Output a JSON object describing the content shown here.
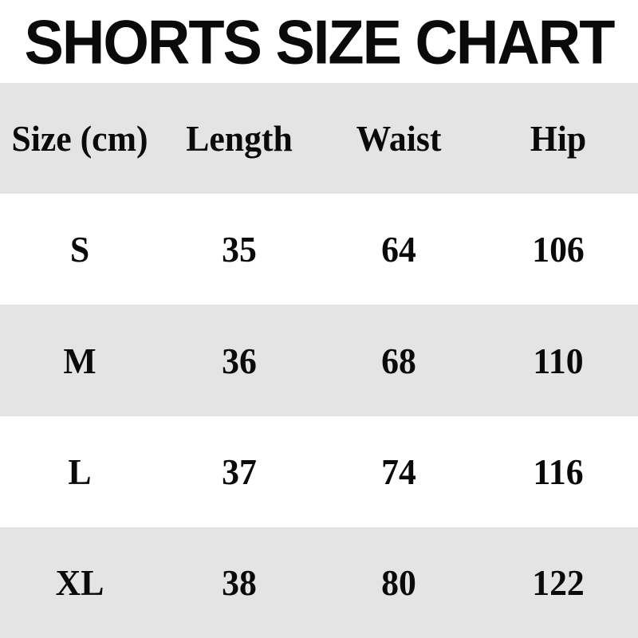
{
  "title": "SHORTS SIZE CHART",
  "colors": {
    "background": "#ffffff",
    "row_alt": "#e4e4e4",
    "text": "#0a0a0a"
  },
  "table": {
    "headers": [
      "Size (cm)",
      "Length",
      "Waist",
      "Hip"
    ],
    "rows": [
      {
        "size": "S",
        "length": "35",
        "waist": "64",
        "hip": "106"
      },
      {
        "size": "M",
        "length": "36",
        "waist": "68",
        "hip": "110"
      },
      {
        "size": "L",
        "length": "37",
        "waist": "74",
        "hip": "116"
      },
      {
        "size": "XL",
        "length": "38",
        "waist": "80",
        "hip": "122"
      }
    ]
  },
  "chart_data": {
    "type": "table",
    "title": "SHORTS SIZE CHART",
    "columns": [
      "Size (cm)",
      "Length",
      "Waist",
      "Hip"
    ],
    "rows": [
      [
        "S",
        35,
        64,
        106
      ],
      [
        "M",
        36,
        68,
        110
      ],
      [
        "L",
        37,
        74,
        116
      ],
      [
        "XL",
        38,
        80,
        122
      ]
    ],
    "units": "cm",
    "layout": {
      "striped": true,
      "header_background": "#e4e4e4",
      "stripe_background": "#e4e4e4"
    }
  }
}
